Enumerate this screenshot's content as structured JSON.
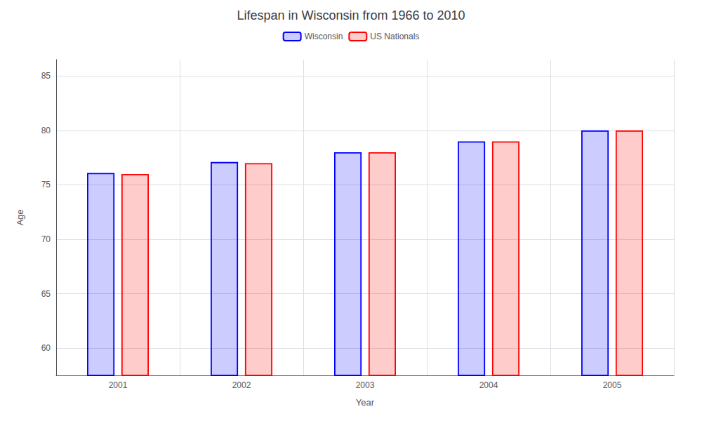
{
  "chart_data": {
    "type": "bar",
    "title": "Lifespan in Wisconsin from 1966 to 2010",
    "x_label": "Year",
    "y_label": "Age",
    "categories": [
      "2001",
      "2002",
      "2003",
      "2004",
      "2005"
    ],
    "series": [
      {
        "name": "Wisconsin",
        "color": "#0000ff",
        "values": [
          76.1,
          77.1,
          78.0,
          79.0,
          80.0
        ]
      },
      {
        "name": "US Nationals",
        "color": "#ff0000",
        "values": [
          76.0,
          77.0,
          78.0,
          79.0,
          80.0
        ]
      }
    ],
    "ylim": [
      57.5,
      86.5
    ],
    "yticks": [
      60,
      65,
      70,
      75,
      80,
      85
    ],
    "grid": true,
    "legend": "top"
  }
}
